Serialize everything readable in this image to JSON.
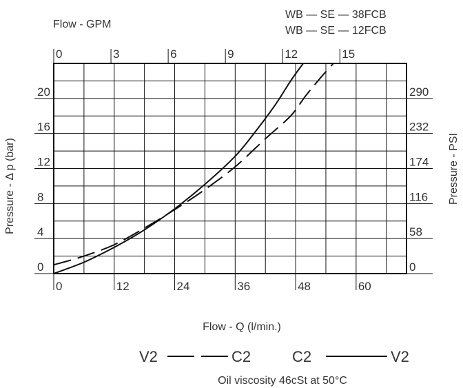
{
  "chart_data": {
    "type": "line",
    "top_axis_title": "Flow - GPM",
    "top_ticks": [
      "0",
      "3",
      "6",
      "9",
      "12",
      "15"
    ],
    "xlabel": "Flow - Q (l/min.)",
    "x_ticks": [
      "0",
      "12",
      "24",
      "36",
      "48",
      "60"
    ],
    "xlim": [
      0,
      70
    ],
    "ylabel": "Pressure - Δ p (bar)",
    "y_ticks": [
      "0",
      "4",
      "8",
      "12",
      "16",
      "20"
    ],
    "ylim": [
      0,
      24
    ],
    "right_axis_title": "Pressure - PSI",
    "right_ticks": [
      "0",
      "58",
      "116",
      "174",
      "232",
      "290"
    ],
    "grid": true,
    "legend_titles": [
      "WB — SE — 38FCB",
      "WB — SE — 12FCB"
    ],
    "series": [
      {
        "name": "V2 —— C2",
        "style": "solid",
        "x": [
          0,
          6,
          12,
          18,
          24,
          30,
          36,
          40,
          44,
          47,
          49.5
        ],
        "y": [
          0,
          1.3,
          3.0,
          5.0,
          7.4,
          10.2,
          13.4,
          16.2,
          19.3,
          22.0,
          24.0
        ]
      },
      {
        "name": "V2 — — C2",
        "style": "dashed",
        "x": [
          0,
          6,
          12,
          18,
          24,
          30,
          36,
          42,
          47,
          50,
          53,
          55.5
        ],
        "y": [
          1.0,
          2.0,
          3.3,
          5.2,
          7.3,
          9.6,
          12.2,
          15.4,
          18.0,
          20.3,
          22.4,
          24.0
        ]
      }
    ],
    "legend_items": [
      {
        "from": "V2",
        "to": "C2",
        "style": "dashed"
      },
      {
        "from": "C2",
        "to": "V2",
        "style": "solid"
      }
    ],
    "note": "Oil viscosity 46cSt at 50°C"
  }
}
